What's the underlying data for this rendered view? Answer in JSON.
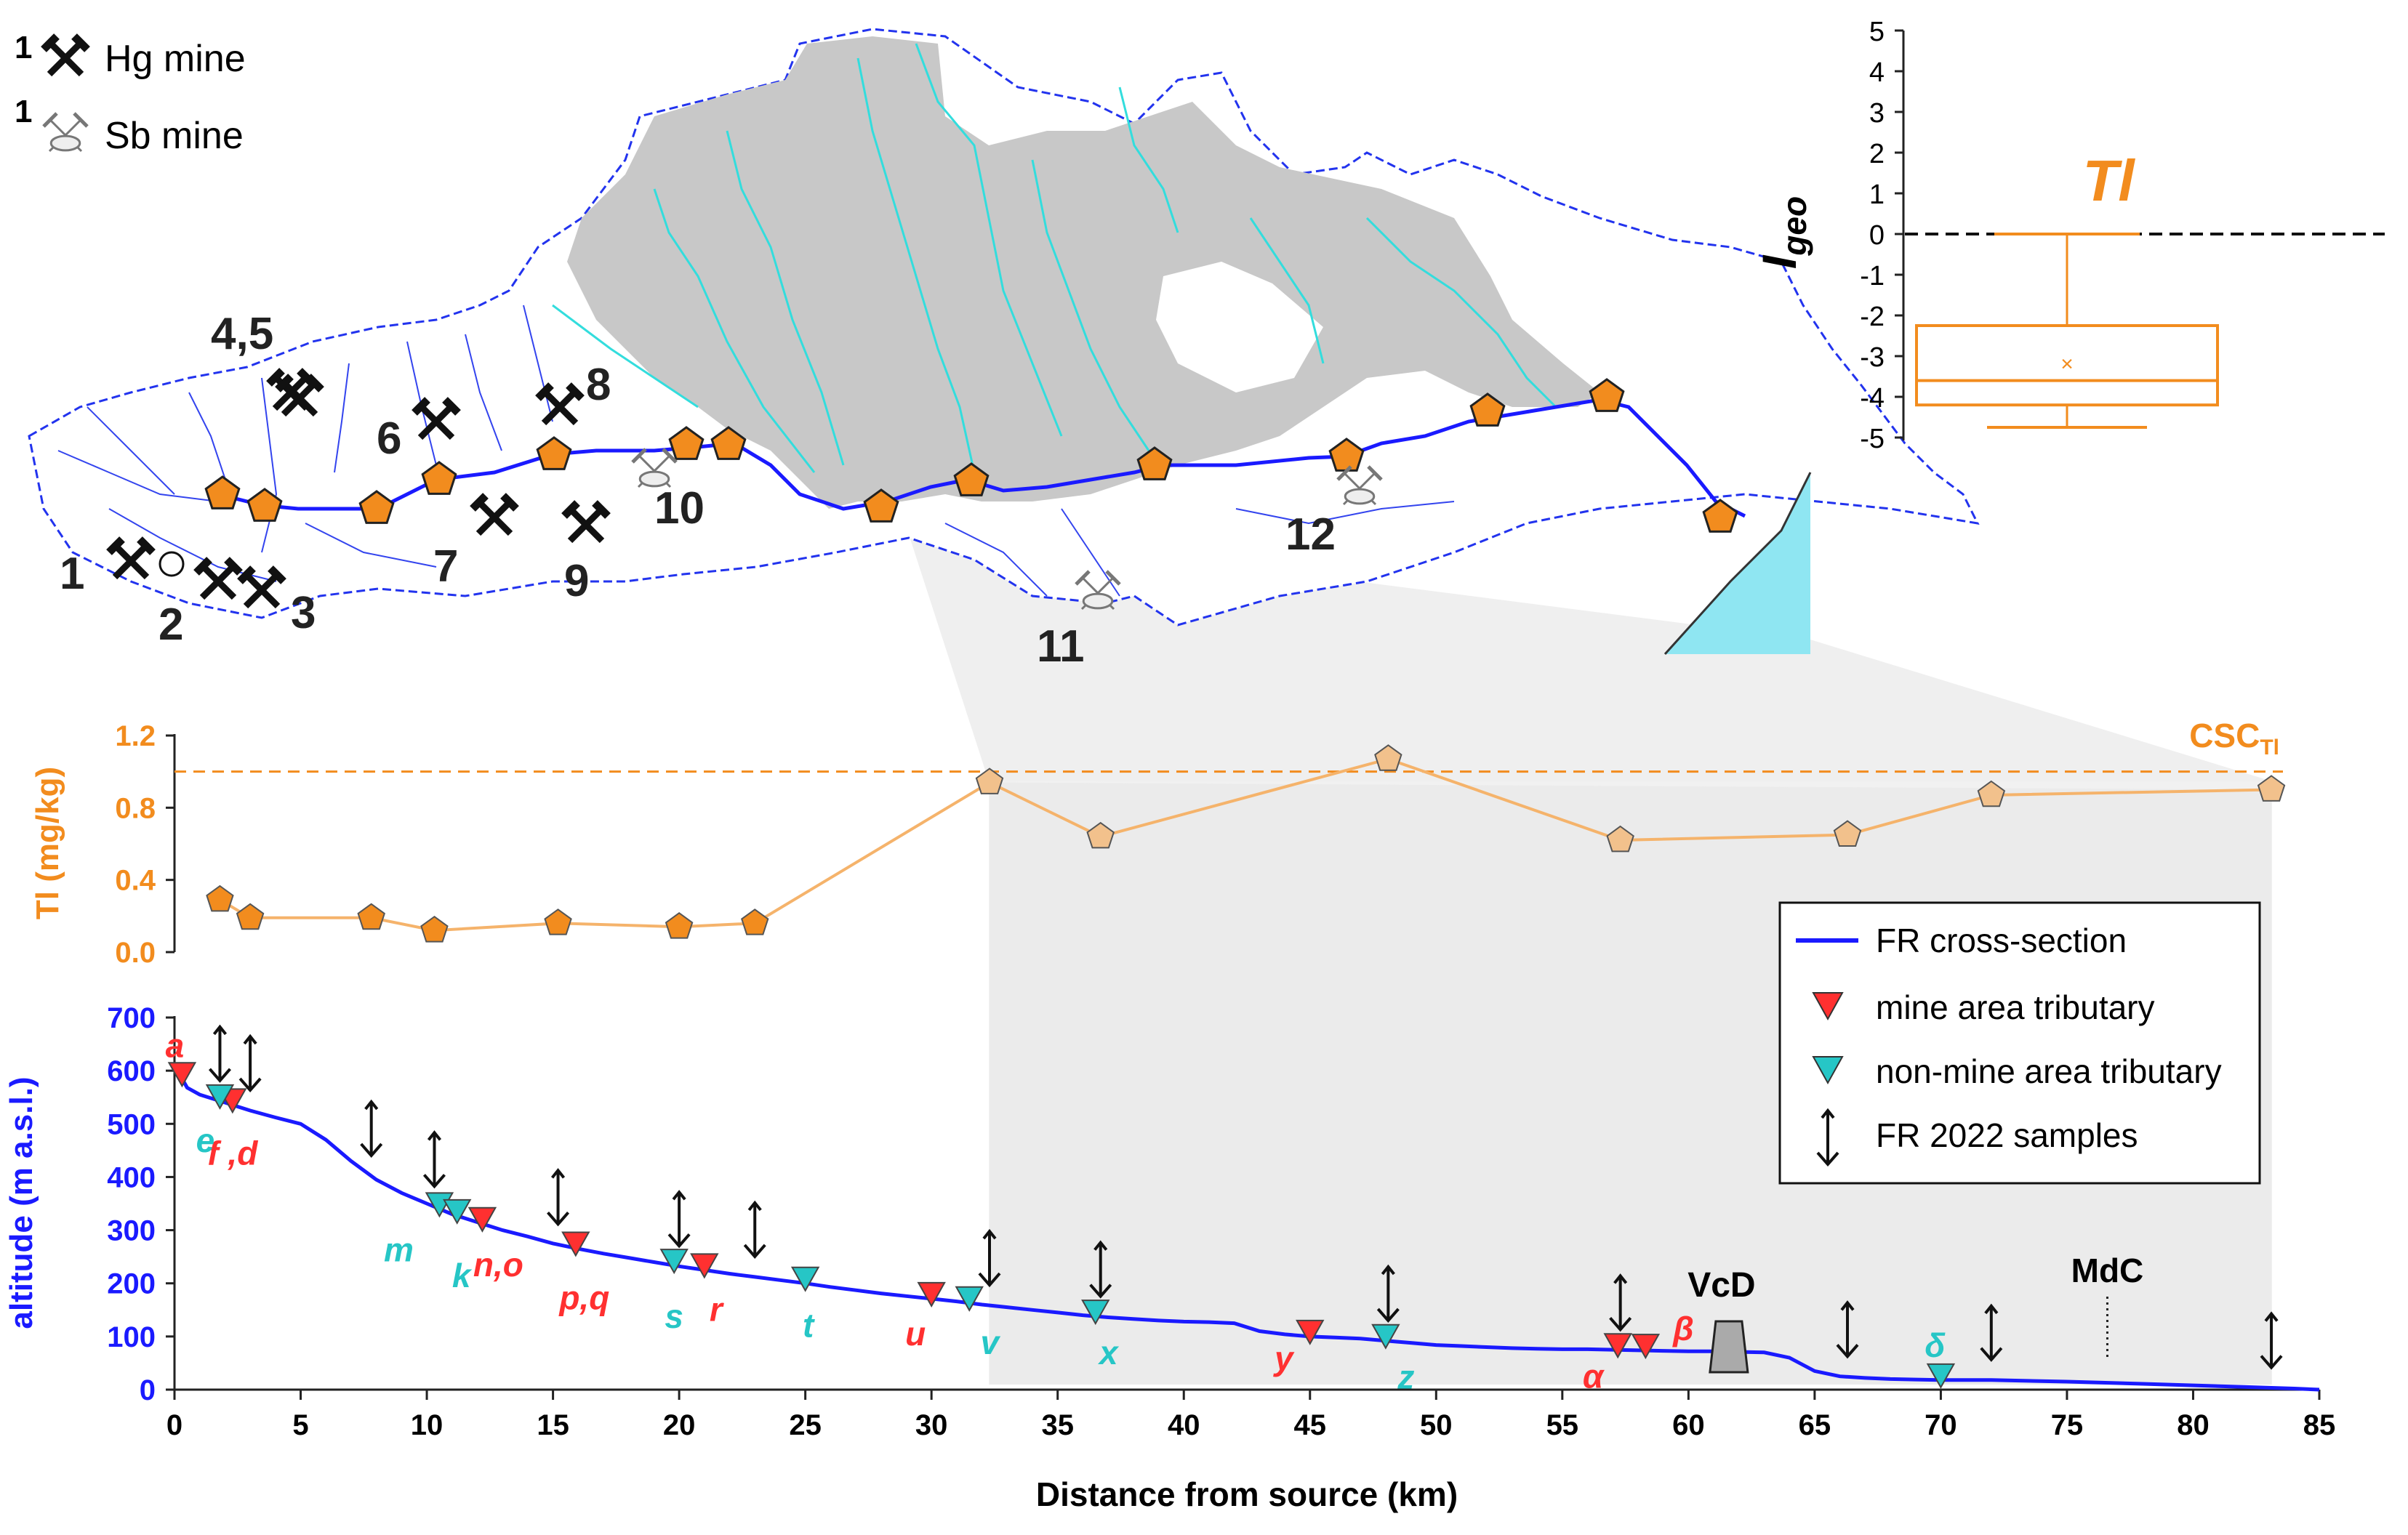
{
  "legend_top": {
    "hg": {
      "num": "1",
      "label": "Hg mine"
    },
    "sb": {
      "num": "1",
      "label": "Sb mine"
    }
  },
  "mine_labels": [
    "1",
    "2",
    "3",
    "4,5",
    "6",
    "7",
    "8",
    "9",
    "10",
    "11",
    "12"
  ],
  "colors": {
    "river": "#1a1aff",
    "tributary": "#33dddd",
    "karst": "#c8c8c8",
    "sample": "#f28c1e",
    "tl_line": "#f5b36b",
    "mine_tri": "#ff3030",
    "nonmine_tri": "#26c6c6",
    "sea": "#8fe6f2",
    "ocre": "#f28c1e"
  },
  "chart_data": [
    {
      "type": "box",
      "element": "Tl",
      "ylabel": "I",
      "ylabel_sub": "geo",
      "ylim": [
        -5,
        5
      ],
      "yticks": [
        "5",
        "4",
        "3",
        "2",
        "1",
        "0",
        "-1",
        "-2",
        "-3",
        "-4",
        "-5"
      ],
      "reference_line": 0,
      "whisker_high": 0,
      "q3": -2.25,
      "median": -3.6,
      "mean": -3.15,
      "q1": -4.2,
      "whisker_low": -4.75
    },
    {
      "type": "line",
      "ylabel": "Tl (mg/kg)",
      "ylim": [
        0,
        1.2
      ],
      "yticks": [
        "0.0",
        "0.4",
        "0.8",
        "1.2"
      ],
      "threshold": {
        "value": 1.0,
        "label": "CSC",
        "label_sub": "Tl"
      },
      "series": [
        {
          "name": "Tl",
          "x": [
            1.8,
            3,
            7.8,
            10.3,
            15.2,
            20,
            23,
            32.3,
            36.7,
            48.1,
            57.3,
            66.3,
            72,
            83.1
          ],
          "values": [
            0.29,
            0.19,
            0.19,
            0.12,
            0.16,
            0.14,
            0.16,
            0.94,
            0.64,
            1.07,
            0.62,
            0.65,
            0.87,
            0.9
          ]
        }
      ]
    },
    {
      "type": "line",
      "xlabel": "Distance from source (km)",
      "ylabel": "altitude (m a.s.l.)",
      "xlim": [
        0,
        85
      ],
      "ylim": [
        0,
        700
      ],
      "xticks": [
        "0",
        "5",
        "10",
        "15",
        "20",
        "25",
        "30",
        "35",
        "40",
        "45",
        "50",
        "55",
        "60",
        "65",
        "70",
        "75",
        "80",
        "85"
      ],
      "yticks": [
        "0",
        "100",
        "200",
        "300",
        "400",
        "500",
        "600",
        "700"
      ],
      "profile": {
        "name": "FR cross-section",
        "x": [
          0,
          0.5,
          1,
          2,
          3,
          4,
          5,
          6,
          7,
          8,
          9,
          10,
          11,
          12,
          13,
          14,
          15,
          16,
          17,
          18,
          19,
          20,
          21,
          22,
          23,
          24,
          25,
          26,
          27,
          28,
          29,
          30,
          31,
          32,
          33,
          34,
          35,
          36,
          37,
          38,
          39,
          40,
          41,
          42,
          43,
          44,
          45,
          46,
          47,
          48,
          49,
          50,
          51,
          52,
          53,
          54,
          55,
          56,
          57,
          58,
          59,
          60,
          61,
          62,
          63,
          64,
          65,
          66,
          67,
          68,
          69,
          70,
          72,
          75,
          78,
          80,
          82,
          84,
          85
        ],
        "values": [
          610,
          568,
          555,
          540,
          525,
          512,
          500,
          470,
          430,
          395,
          370,
          350,
          330,
          315,
          300,
          288,
          275,
          265,
          256,
          248,
          240,
          232,
          225,
          218,
          212,
          206,
          200,
          193,
          187,
          181,
          176,
          171,
          166,
          160,
          155,
          150,
          145,
          140,
          136,
          133,
          130,
          128,
          127,
          125,
          110,
          104,
          100,
          98,
          96,
          92,
          88,
          84,
          82,
          80,
          78,
          77,
          76,
          76,
          75,
          74,
          73,
          72,
          72,
          71,
          70,
          60,
          35,
          25,
          22,
          20,
          19,
          18,
          18,
          15,
          11,
          8,
          5,
          2,
          0
        ]
      },
      "mine_tributaries": [
        {
          "x": 0.3,
          "label": "a"
        },
        {
          "x": 2.3,
          "label": "f ,d"
        },
        {
          "x": 12.2,
          "label": "n,o"
        },
        {
          "x": 15.9,
          "label": "p,q"
        },
        {
          "x": 21,
          "label": "r"
        },
        {
          "x": 30,
          "label": "u"
        },
        {
          "x": 45,
          "label": "y"
        },
        {
          "x": 57.2,
          "label": "α"
        },
        {
          "x": 58.3,
          "label": "β"
        }
      ],
      "nonmine_tributaries": [
        {
          "x": 1.8,
          "label": "e"
        },
        {
          "x": 10.5,
          "label": "m"
        },
        {
          "x": 11.2,
          "label": "k"
        },
        {
          "x": 19.8,
          "label": "s"
        },
        {
          "x": 25,
          "label": "t"
        },
        {
          "x": 31.5,
          "label": "v"
        },
        {
          "x": 36.5,
          "label": "x"
        },
        {
          "x": 48,
          "label": "z"
        },
        {
          "x": 70,
          "label": "δ"
        }
      ],
      "samples_x": [
        1.8,
        3,
        7.8,
        10.3,
        15.2,
        20,
        23,
        32.3,
        36.7,
        48.1,
        57.3,
        66.3,
        72,
        83.1
      ],
      "annotations": [
        {
          "label": "VcD",
          "x": 61.6
        },
        {
          "label": "MdC",
          "x": 76.6
        }
      ],
      "legend": [
        "FR cross-section",
        "mine area tributary",
        "non-mine area tributary",
        "FR 2022 samples"
      ],
      "legend_position": "right"
    }
  ]
}
